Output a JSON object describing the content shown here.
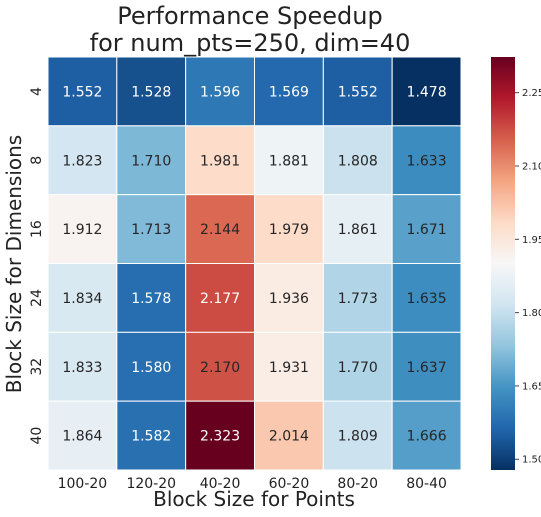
{
  "chart_data": {
    "type": "heatmap",
    "title_lines": [
      "Performance Speedup",
      "for num_pts=250, dim=40"
    ],
    "xlabel": "Block Size for Points",
    "ylabel": "Block Size for Dimensions",
    "x_categories": [
      "100-20",
      "120-20",
      "40-20",
      "60-20",
      "80-20",
      "80-40"
    ],
    "y_categories": [
      "4",
      "8",
      "16",
      "24",
      "32",
      "40"
    ],
    "values": [
      [
        1.552,
        1.528,
        1.596,
        1.569,
        1.552,
        1.478
      ],
      [
        1.823,
        1.71,
        1.981,
        1.881,
        1.808,
        1.633
      ],
      [
        1.912,
        1.713,
        2.144,
        1.979,
        1.861,
        1.671
      ],
      [
        1.834,
        1.578,
        2.177,
        1.936,
        1.773,
        1.635
      ],
      [
        1.833,
        1.58,
        2.17,
        1.931,
        1.77,
        1.637
      ],
      [
        1.864,
        1.582,
        2.323,
        2.014,
        1.809,
        1.666
      ]
    ],
    "value_labels": [
      [
        "1.552",
        "1.528",
        "1.596",
        "1.569",
        "1.552",
        "1.478"
      ],
      [
        "1.823",
        "1.710",
        "1.981",
        "1.881",
        "1.808",
        "1.633"
      ],
      [
        "1.912",
        "1.713",
        "2.144",
        "1.979",
        "1.861",
        "1.671"
      ],
      [
        "1.834",
        "1.578",
        "2.177",
        "1.936",
        "1.773",
        "1.635"
      ],
      [
        "1.833",
        "1.580",
        "2.170",
        "1.931",
        "1.770",
        "1.637"
      ],
      [
        "1.864",
        "1.582",
        "2.323",
        "2.014",
        "1.809",
        "1.666"
      ]
    ],
    "colormap": "RdBu_r",
    "colorbar": {
      "range": [
        1.478,
        2.323
      ],
      "ticks": [
        1.5,
        1.65,
        1.8,
        1.95,
        2.1,
        2.25
      ],
      "tick_labels": [
        "1.50",
        "1.65",
        "1.80",
        "1.95",
        "2.10",
        "2.25"
      ],
      "position": "right"
    },
    "colors": {
      "low": "#053061",
      "mid_low": "#4393c3",
      "mid": "#f7f7f7",
      "mid_high": "#d6604d",
      "high": "#67001f"
    }
  }
}
